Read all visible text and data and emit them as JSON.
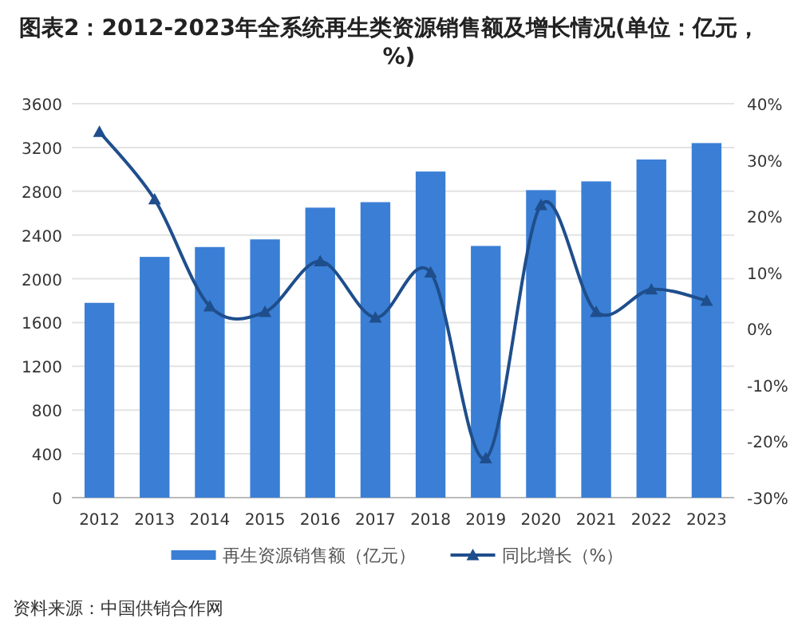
{
  "chart_data": {
    "type": "bar",
    "title": "图表2：2012-2023年全系统再生类资源销售额及增长情况(单位：亿元，%)",
    "categories": [
      "2012",
      "2013",
      "2014",
      "2015",
      "2016",
      "2017",
      "2018",
      "2019",
      "2020",
      "2021",
      "2022",
      "2023"
    ],
    "series": [
      {
        "name": "再生资源销售额（亿元）",
        "color": "#3a7fd5",
        "values": [
          1780,
          2200,
          2290,
          2360,
          2650,
          2700,
          2980,
          2300,
          2810,
          2890,
          3090,
          3240
        ]
      },
      {
        "name": "同比增长（%）",
        "type": "line",
        "axis": "y2",
        "color": "#1f4e8c",
        "marker": "triangle",
        "values": [
          35,
          23,
          4,
          3,
          12,
          2,
          10,
          -23,
          22,
          3,
          7,
          5
        ]
      }
    ],
    "ylim": [
      0,
      3600
    ],
    "yticks": [
      0,
      400,
      800,
      1200,
      1600,
      2000,
      2400,
      2800,
      3200,
      3600
    ],
    "y2lim": [
      -30,
      40
    ],
    "y2ticks": [
      {
        "value": -30,
        "label": "-30%"
      },
      {
        "value": -20,
        "label": "-20%"
      },
      {
        "value": -10,
        "label": "-10%"
      },
      {
        "value": 0,
        "label": "0%"
      },
      {
        "value": 10,
        "label": "10%"
      },
      {
        "value": 20,
        "label": "20%"
      },
      {
        "value": 30,
        "label": "30%"
      },
      {
        "value": 40,
        "label": "40%"
      }
    ],
    "grid": "y",
    "legend": "bottom",
    "annotations": [
      "资料来源：中国供销合作网"
    ]
  }
}
